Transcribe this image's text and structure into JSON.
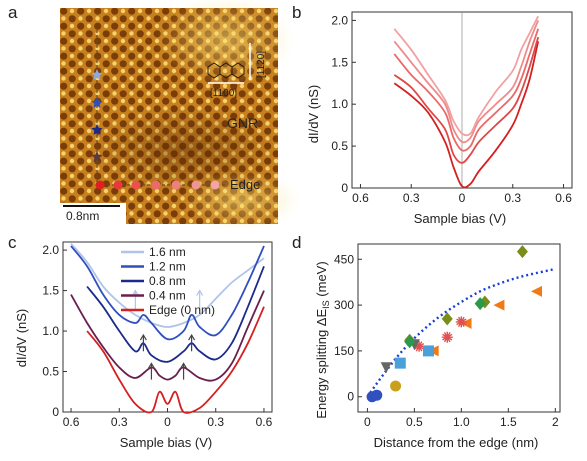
{
  "panels": {
    "a": {
      "label": "a",
      "gnr_label": "GNR",
      "edge_label": "Edge",
      "scalebar_label": "0.8nm",
      "direction_1": "[1100]",
      "direction_2": "[1120]",
      "colors": {
        "background": "#c8801f",
        "lattice_dark": "#7a3d08",
        "lattice_light": "#f4d36a"
      }
    },
    "b": {
      "label": "b",
      "xlabel": "Sample bias (V)",
      "ylabel": "dI/dV (nS)",
      "x_ticks": [
        "0.6",
        "0.3",
        "0",
        "0.3",
        "0.6"
      ],
      "y_ticks": [
        "0",
        "0.5",
        "1.0",
        "1.5",
        "2.0"
      ]
    },
    "c": {
      "label": "c",
      "xlabel": "Sample bias (V)",
      "ylabel": "dI/dV (nS)",
      "x_ticks": [
        "0.6",
        "0.3",
        "0",
        "0.3",
        "0.6"
      ],
      "y_ticks": [
        "0",
        "0.5",
        "1.0",
        "1.5",
        "2.0"
      ],
      "legend": [
        "1.6 nm",
        "1.2 nm",
        "0.8 nm",
        "0.4 nm",
        "Edge (0 nm)"
      ]
    },
    "d": {
      "label": "d",
      "xlabel": "Distance from the edge (nm)",
      "ylabel_main": "Energy splitting ΔE",
      "ylabel_sub": "IS",
      "ylabel_unit": " (meV)",
      "x_ticks": [
        "0",
        "0.5",
        "1.0",
        "1.5",
        "2"
      ],
      "y_ticks": [
        "0",
        "150",
        "300",
        "450"
      ]
    }
  },
  "chart_data": [
    {
      "panel": "b",
      "type": "line",
      "xlabel": "Sample bias (V)",
      "ylabel": "dI/dV (nS)",
      "xlim": [
        -0.65,
        0.65
      ],
      "ylim": [
        0,
        2.1
      ],
      "series": [
        {
          "color": "#d42020",
          "x": [
            -0.4,
            -0.3,
            -0.2,
            -0.1,
            -0.05,
            0,
            0.05,
            0.1,
            0.2,
            0.3,
            0.35,
            0.4,
            0.45
          ],
          "y": [
            1.25,
            1.1,
            0.9,
            0.55,
            0.25,
            0.02,
            0.05,
            0.2,
            0.45,
            0.75,
            1.0,
            1.3,
            1.75
          ]
        },
        {
          "color": "#e04848",
          "x": [
            -0.4,
            -0.3,
            -0.2,
            -0.1,
            -0.05,
            0,
            0.05,
            0.1,
            0.2,
            0.3,
            0.35,
            0.4,
            0.45
          ],
          "y": [
            1.35,
            1.2,
            0.95,
            0.7,
            0.4,
            0.3,
            0.4,
            0.55,
            0.75,
            0.95,
            1.15,
            1.45,
            1.8
          ]
        },
        {
          "color": "#e86a6a",
          "x": [
            -0.4,
            -0.3,
            -0.2,
            -0.1,
            -0.05,
            0,
            0.05,
            0.1,
            0.2,
            0.3,
            0.35,
            0.4,
            0.45
          ],
          "y": [
            1.6,
            1.35,
            1.15,
            0.9,
            0.6,
            0.45,
            0.5,
            0.7,
            0.9,
            1.1,
            1.3,
            1.6,
            1.9
          ]
        },
        {
          "color": "#ef8a8a",
          "x": [
            -0.4,
            -0.3,
            -0.2,
            -0.1,
            -0.05,
            0,
            0.05,
            0.1,
            0.2,
            0.3,
            0.35,
            0.4,
            0.45
          ],
          "y": [
            1.75,
            1.5,
            1.25,
            1.0,
            0.7,
            0.55,
            0.6,
            0.8,
            1.0,
            1.2,
            1.45,
            1.75,
            2.0
          ]
        },
        {
          "color": "#f2a0a0",
          "x": [
            -0.4,
            -0.3,
            -0.2,
            -0.1,
            -0.05,
            0,
            0.05,
            0.1,
            0.2,
            0.3,
            0.35,
            0.4,
            0.45
          ],
          "y": [
            1.9,
            1.65,
            1.35,
            1.05,
            0.8,
            0.65,
            0.65,
            0.85,
            1.15,
            1.4,
            1.65,
            1.85,
            2.05
          ]
        }
      ]
    },
    {
      "panel": "c",
      "type": "line",
      "xlabel": "Sample bias (V)",
      "ylabel": "dI/dV (nS)",
      "xlim": [
        -0.65,
        0.65
      ],
      "ylim": [
        0,
        2.1
      ],
      "series": [
        {
          "name": "1.6 nm",
          "color": "#b0c4ea",
          "x": [
            -0.6,
            -0.5,
            -0.4,
            -0.3,
            -0.2,
            -0.1,
            0,
            0.1,
            0.2,
            0.3,
            0.4,
            0.5,
            0.6
          ],
          "y": [
            2.08,
            1.85,
            1.55,
            1.35,
            1.2,
            1.1,
            1.05,
            1.1,
            1.2,
            1.4,
            1.6,
            1.75,
            1.9
          ]
        },
        {
          "name": "1.2 nm",
          "color": "#2f4fbf",
          "x": [
            -0.6,
            -0.5,
            -0.4,
            -0.3,
            -0.2,
            -0.15,
            -0.1,
            0,
            0.1,
            0.15,
            0.2,
            0.3,
            0.4,
            0.5,
            0.6
          ],
          "y": [
            2.05,
            1.8,
            1.45,
            1.2,
            1.1,
            1.2,
            1.1,
            0.9,
            1.0,
            1.2,
            1.05,
            0.95,
            1.2,
            1.6,
            2.05
          ]
        },
        {
          "name": "0.8 nm",
          "color": "#1c2a8a",
          "x": [
            -0.5,
            -0.4,
            -0.3,
            -0.2,
            -0.15,
            -0.1,
            0,
            0.1,
            0.15,
            0.2,
            0.3,
            0.4,
            0.5,
            0.6
          ],
          "y": [
            1.55,
            1.3,
            1.0,
            0.75,
            0.85,
            0.7,
            0.62,
            0.75,
            0.85,
            0.75,
            0.65,
            0.85,
            1.3,
            1.8
          ]
        },
        {
          "name": "0.4 nm",
          "color": "#6b1f4f",
          "x": [
            -0.6,
            -0.5,
            -0.4,
            -0.3,
            -0.2,
            -0.1,
            -0.05,
            0,
            0.05,
            0.1,
            0.2,
            0.3,
            0.4,
            0.5,
            0.6
          ],
          "y": [
            1.45,
            1.1,
            0.8,
            0.55,
            0.42,
            0.55,
            0.45,
            0.4,
            0.45,
            0.55,
            0.42,
            0.4,
            0.6,
            1.05,
            1.5
          ]
        },
        {
          "name": "Edge (0 nm)",
          "color": "#d42020",
          "x": [
            -0.5,
            -0.4,
            -0.3,
            -0.2,
            -0.1,
            -0.05,
            0,
            0.05,
            0.1,
            0.2,
            0.3,
            0.4,
            0.5,
            0.6
          ],
          "y": [
            1.0,
            0.75,
            0.4,
            0.1,
            0.0,
            0.25,
            0.1,
            0.25,
            0.0,
            0.05,
            0.25,
            0.5,
            0.85,
            1.3
          ]
        }
      ]
    },
    {
      "panel": "d",
      "type": "scatter",
      "xlabel": "Distance from the edge (nm)",
      "ylabel": "Energy splitting ΔE_IS (meV)",
      "xlim": [
        -0.1,
        2.05
      ],
      "ylim": [
        -50,
        500
      ],
      "fit": {
        "color": "#1a3fd8",
        "x": [
          0,
          0.2,
          0.4,
          0.6,
          0.8,
          1.0,
          1.2,
          1.4,
          1.6,
          1.8,
          2.0
        ],
        "y": [
          0,
          85,
          160,
          220,
          270,
          310,
          345,
          370,
          390,
          405,
          418
        ]
      },
      "series": [
        {
          "marker": "diamond",
          "color": "#7a8c1a",
          "points": [
            [
              0.45,
              185
            ],
            [
              0.85,
              255
            ],
            [
              1.25,
              310
            ],
            [
              1.65,
              475
            ]
          ]
        },
        {
          "marker": "triangle-left",
          "color": "#f07a18",
          "points": [
            [
              0.7,
              150
            ],
            [
              1.05,
              240
            ],
            [
              1.4,
              300
            ],
            [
              1.8,
              345
            ]
          ]
        },
        {
          "marker": "star",
          "color": "#e05050",
          "points": [
            [
              0.55,
              165
            ],
            [
              0.85,
              195
            ],
            [
              1.0,
              245
            ]
          ]
        },
        {
          "marker": "triangle-down",
          "color": "#666666",
          "points": [
            [
              0.2,
              95
            ],
            [
              0.5,
              170
            ]
          ]
        },
        {
          "marker": "circle",
          "color": "#caa01a",
          "points": [
            [
              0.3,
              35
            ]
          ]
        },
        {
          "marker": "square",
          "color": "#4aa0d8",
          "points": [
            [
              0.35,
              110
            ],
            [
              0.65,
              150
            ]
          ]
        },
        {
          "marker": "diamond",
          "color": "#2a9a4a",
          "points": [
            [
              0.45,
              180
            ],
            [
              1.2,
              305
            ]
          ]
        },
        {
          "marker": "circle",
          "color": "#3050c0",
          "points": [
            [
              0.05,
              0
            ],
            [
              0.1,
              5
            ]
          ]
        }
      ]
    }
  ]
}
